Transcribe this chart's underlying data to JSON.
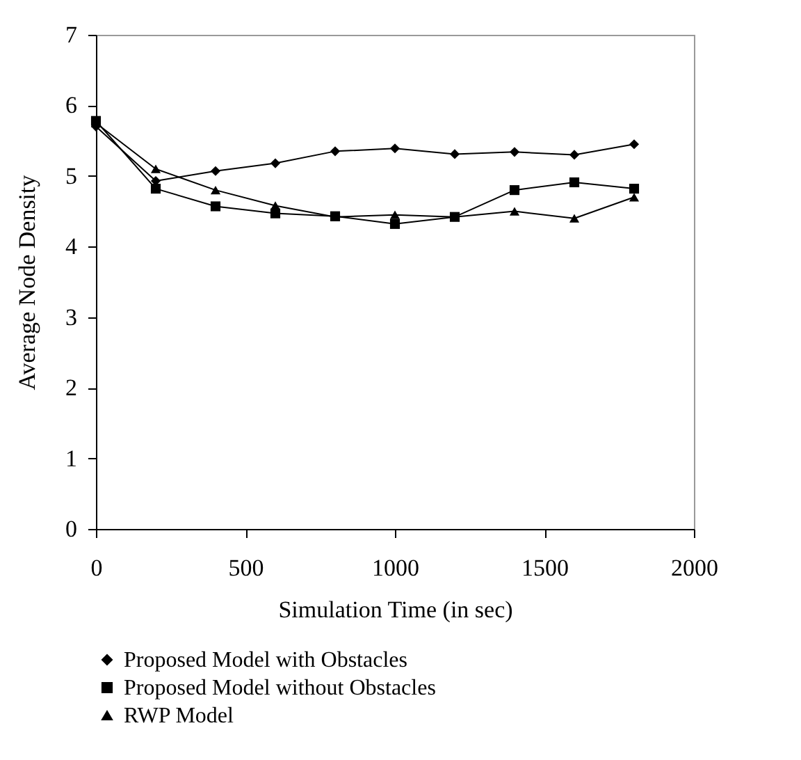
{
  "chart_data": {
    "type": "line",
    "xlabel": "Simulation Time (in sec)",
    "ylabel": "Average Node Density",
    "x": [
      0,
      200,
      400,
      600,
      800,
      1000,
      1200,
      1400,
      1600,
      1800
    ],
    "series": [
      {
        "name": "Proposed Model with Obstacles",
        "color": "#000000",
        "marker": "diamond",
        "values": [
          5.7,
          4.93,
          5.07,
          5.18,
          5.35,
          5.39,
          5.31,
          5.34,
          5.3,
          5.45
        ]
      },
      {
        "name": "Proposed Model without Obstacles",
        "color": "#000000",
        "marker": "square",
        "values": [
          5.78,
          4.82,
          4.57,
          4.47,
          4.43,
          4.32,
          4.42,
          4.8,
          4.91,
          4.82
        ]
      },
      {
        "name": "RWP Model",
        "color": "#000000",
        "marker": "triangle",
        "values": [
          5.75,
          5.1,
          4.8,
          4.58,
          4.42,
          4.45,
          4.42,
          4.5,
          4.4,
          4.7
        ]
      }
    ],
    "xlim": [
      0,
      2000
    ],
    "xticks": [
      0,
      500,
      1000,
      1500,
      2000
    ],
    "ylim": [
      0,
      7
    ],
    "yticks": [
      0,
      1,
      2,
      3,
      4,
      5,
      6,
      7
    ],
    "grid": false,
    "legend": "bottom",
    "line_style": "solid"
  }
}
